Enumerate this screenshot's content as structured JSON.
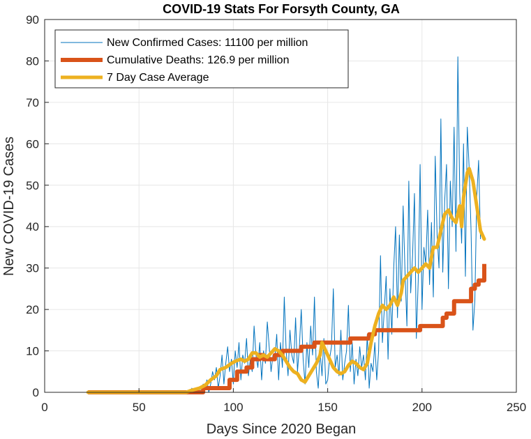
{
  "chart_data": {
    "type": "line",
    "title": "COVID-19 Stats For Forsyth County, GA",
    "xlabel": "Days Since 2020 Began",
    "ylabel": "New COVID-19 Cases",
    "xlim": [
      0,
      250
    ],
    "ylim": [
      0,
      90
    ],
    "xticks": [
      0,
      50,
      100,
      150,
      200,
      250
    ],
    "yticks": [
      0,
      10,
      20,
      30,
      40,
      50,
      60,
      70,
      80,
      90
    ],
    "grid": true,
    "legend_position": "top-left",
    "series": [
      {
        "name": "New Confirmed Cases: 11100 per million",
        "color": "#0072BD",
        "x_start": 23,
        "values": [
          0,
          0,
          0,
          0,
          0,
          0,
          0,
          0,
          0,
          0,
          0,
          0,
          0,
          0,
          0,
          0,
          0,
          0,
          0,
          0,
          0,
          0,
          0,
          0,
          0,
          0,
          0,
          0,
          0,
          0,
          0,
          0,
          0,
          0,
          0,
          0,
          0,
          0,
          0,
          0,
          0,
          0,
          0,
          0,
          0,
          0,
          0,
          0,
          0,
          0,
          0,
          0,
          0,
          0,
          0,
          1,
          0,
          1,
          0,
          1,
          0,
          2,
          1,
          3,
          0,
          2,
          5,
          3,
          6,
          1,
          4,
          9,
          2,
          7,
          11,
          5,
          8,
          2,
          10,
          6,
          12,
          3,
          9,
          7,
          13,
          4,
          8,
          5,
          16,
          9,
          6,
          12,
          3,
          10,
          7,
          17,
          11,
          5,
          9,
          8,
          14,
          3,
          12,
          6,
          23,
          10,
          4,
          15,
          9,
          7,
          18,
          5,
          11,
          20,
          8,
          2,
          12,
          6,
          16,
          9,
          23,
          5,
          1,
          10,
          4,
          13,
          2,
          3,
          8,
          11,
          25,
          6,
          9,
          4,
          15,
          3,
          7,
          10,
          21,
          5,
          12,
          2,
          8,
          4,
          11,
          6,
          9,
          3,
          14,
          1,
          7,
          5,
          12,
          3,
          10,
          33,
          12,
          20,
          28,
          8,
          25,
          14,
          30,
          40,
          18,
          38,
          22,
          45,
          29,
          16,
          51,
          24,
          33,
          48,
          13,
          27,
          55,
          20,
          35,
          31,
          44,
          26,
          41,
          23,
          57,
          38,
          30,
          66,
          29,
          46,
          55,
          25,
          51,
          40,
          64,
          34,
          81,
          48,
          36,
          60,
          28,
          64,
          54,
          39,
          15,
          22,
          47,
          56,
          37
        ],
        "line_width": 1
      },
      {
        "name": "Cumulative Deaths: 126.9 per million",
        "color": "#D95319",
        "steps": [
          [
            23,
            0
          ],
          [
            84,
            1
          ],
          [
            98,
            3
          ],
          [
            102,
            5
          ],
          [
            107,
            6
          ],
          [
            110,
            8
          ],
          [
            114,
            9
          ],
          [
            116,
            8
          ],
          [
            122,
            9
          ],
          [
            126,
            10
          ],
          [
            132,
            10
          ],
          [
            136,
            11
          ],
          [
            143,
            12
          ],
          [
            162,
            13
          ],
          [
            168,
            13
          ],
          [
            172,
            14
          ],
          [
            175,
            15
          ],
          [
            199,
            16
          ],
          [
            211,
            18
          ],
          [
            213,
            19
          ],
          [
            217,
            22
          ],
          [
            224,
            22
          ],
          [
            226,
            25
          ],
          [
            228,
            26
          ],
          [
            230,
            27
          ],
          [
            233,
            31
          ]
        ],
        "line_width": 6
      },
      {
        "name": "7 Day Case Average",
        "color": "#EDB120",
        "points": [
          [
            23,
            0
          ],
          [
            75,
            0
          ],
          [
            78,
            0.5
          ],
          [
            82,
            1
          ],
          [
            85,
            1.7
          ],
          [
            88,
            3
          ],
          [
            91,
            4
          ],
          [
            93,
            5.5
          ],
          [
            96,
            6
          ],
          [
            99,
            7
          ],
          [
            101,
            7.5
          ],
          [
            104,
            8
          ],
          [
            106,
            7.5
          ],
          [
            108,
            8
          ],
          [
            110,
            9.5
          ],
          [
            112,
            9.5
          ],
          [
            114,
            8.5
          ],
          [
            116,
            9
          ],
          [
            118,
            8.5
          ],
          [
            120,
            9.5
          ],
          [
            122,
            10.5
          ],
          [
            124,
            10
          ],
          [
            126,
            9
          ],
          [
            128,
            7.5
          ],
          [
            130,
            6
          ],
          [
            132,
            5
          ],
          [
            134,
            4.5
          ],
          [
            136,
            3
          ],
          [
            138,
            2.5
          ],
          [
            140,
            4
          ],
          [
            142,
            5.5
          ],
          [
            144,
            7
          ],
          [
            146,
            9
          ],
          [
            147,
            12
          ],
          [
            149,
            10
          ],
          [
            151,
            8
          ],
          [
            153,
            6
          ],
          [
            155,
            5
          ],
          [
            157,
            4.5
          ],
          [
            159,
            5
          ],
          [
            161,
            6.5
          ],
          [
            163,
            7.5
          ],
          [
            165,
            7
          ],
          [
            167,
            6
          ],
          [
            169,
            5.5
          ],
          [
            171,
            7
          ],
          [
            173,
            12
          ],
          [
            175,
            16
          ],
          [
            177,
            19
          ],
          [
            179,
            21
          ],
          [
            181,
            20
          ],
          [
            183,
            21
          ],
          [
            185,
            23
          ],
          [
            187,
            21
          ],
          [
            189,
            24
          ],
          [
            190,
            27
          ],
          [
            192,
            28
          ],
          [
            194,
            29
          ],
          [
            196,
            30
          ],
          [
            198,
            29
          ],
          [
            200,
            30
          ],
          [
            202,
            31
          ],
          [
            204,
            30
          ],
          [
            206,
            35
          ],
          [
            208,
            35
          ],
          [
            210,
            39
          ],
          [
            212,
            43
          ],
          [
            214,
            44
          ],
          [
            216,
            42
          ],
          [
            218,
            41
          ],
          [
            220,
            45
          ],
          [
            221,
            40
          ],
          [
            222,
            47
          ],
          [
            224,
            53
          ],
          [
            225,
            54
          ],
          [
            227,
            51
          ],
          [
            229,
            45
          ],
          [
            231,
            39
          ],
          [
            233,
            37
          ]
        ],
        "line_width": 5
      }
    ]
  }
}
